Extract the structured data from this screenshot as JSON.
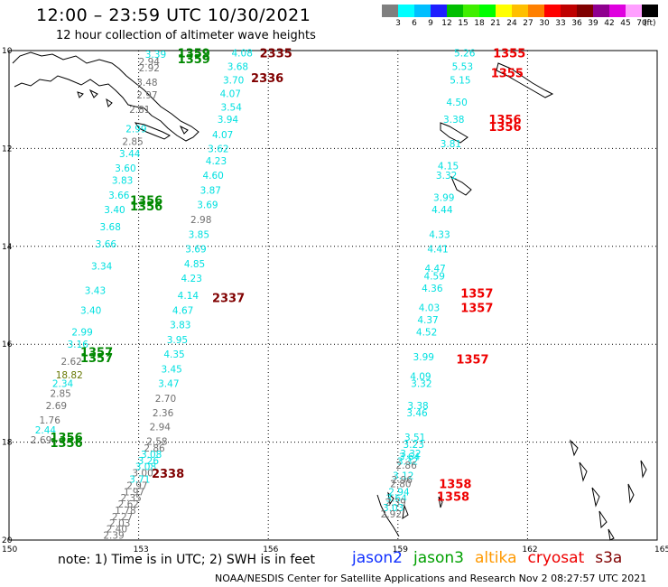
{
  "header": {
    "title": "12:00 – 23:59 UTC 10/30/2021",
    "subtitle": "12 hour collection of altimeter wave heights"
  },
  "colorbar": {
    "colors": [
      "#7f7f7f",
      "#00ffff",
      "#00bfff",
      "#1f1fff",
      "#00bf00",
      "#3fef00",
      "#00ff00",
      "#ffff00",
      "#ffbf00",
      "#ff8000",
      "#ff0000",
      "#bf0000",
      "#800000",
      "#8f008f",
      "#df00df",
      "#ff9fff",
      "#000000"
    ],
    "labels": [
      "3",
      "6",
      "9",
      "12",
      "15",
      "18",
      "21",
      "24",
      "27",
      "30",
      "33",
      "36",
      "39",
      "42",
      "45",
      "70"
    ],
    "unit": "(ft)"
  },
  "map": {
    "lat_labels": [
      "10",
      "12",
      "14",
      "16",
      "18",
      "20"
    ],
    "lon_labels": [
      "150",
      "153",
      "156",
      "159",
      "162",
      "165"
    ],
    "chart_data": {
      "type": "scatter",
      "lon_range": [
        150,
        165
      ],
      "lat_range": [
        -20,
        -10
      ],
      "series_colors": {
        "cyan": "#00e0e0",
        "gray": "#707070",
        "green": "#008800",
        "olive": "#667700",
        "darkred": "#800000",
        "red": "#ee0000"
      },
      "wave_labels": [
        [
          "3.39",
          153.15,
          -10.07,
          "cyan"
        ],
        [
          "2.94",
          153.0,
          -10.22,
          "gray"
        ],
        [
          "2.92",
          153.0,
          -10.35,
          "gray"
        ],
        [
          "3.48",
          152.95,
          -10.65,
          "gray"
        ],
        [
          "2.97",
          152.95,
          -10.9,
          "gray"
        ],
        [
          "2.81",
          152.78,
          -11.2,
          "gray"
        ],
        [
          "2.99",
          152.7,
          -11.6,
          "cyan"
        ],
        [
          "2.85",
          152.62,
          -11.85,
          "gray"
        ],
        [
          "3.44",
          152.55,
          -12.1,
          "cyan"
        ],
        [
          "3.60",
          152.45,
          -12.4,
          "cyan"
        ],
        [
          "3.83",
          152.38,
          -12.65,
          "cyan"
        ],
        [
          "3.66",
          152.3,
          -12.95,
          "cyan"
        ],
        [
          "3.40",
          152.2,
          -13.25,
          "cyan"
        ],
        [
          "3.68",
          152.1,
          -13.6,
          "cyan"
        ],
        [
          "3.66",
          152.0,
          -13.95,
          "cyan"
        ],
        [
          "3.34",
          151.9,
          -14.4,
          "cyan"
        ],
        [
          "3.43",
          151.75,
          -14.9,
          "cyan"
        ],
        [
          "3.40",
          151.65,
          -15.3,
          "cyan"
        ],
        [
          "2.99",
          151.45,
          -15.75,
          "cyan"
        ],
        [
          "3.16",
          151.35,
          -16.0,
          "cyan"
        ],
        [
          "2.62",
          151.2,
          -16.35,
          "gray"
        ],
        [
          "18.82",
          151.08,
          -16.62,
          "olive"
        ],
        [
          "2.34",
          151.0,
          -16.8,
          "cyan"
        ],
        [
          "2.85",
          150.95,
          -17.0,
          "gray"
        ],
        [
          "2.69",
          150.85,
          -17.25,
          "gray"
        ],
        [
          "1.76",
          150.7,
          -17.55,
          "gray"
        ],
        [
          "2.44",
          150.6,
          -17.75,
          "cyan"
        ],
        [
          "2.69",
          150.5,
          -17.95,
          "gray"
        ],
        [
          "4.08",
          155.15,
          -10.05,
          "cyan"
        ],
        [
          "3.68",
          155.05,
          -10.32,
          "cyan"
        ],
        [
          "3.70",
          154.95,
          -10.6,
          "cyan"
        ],
        [
          "4.07",
          154.88,
          -10.88,
          "cyan"
        ],
        [
          "3.54",
          154.9,
          -11.15,
          "cyan"
        ],
        [
          "3.94",
          154.82,
          -11.4,
          "cyan"
        ],
        [
          "4.07",
          154.7,
          -11.72,
          "cyan"
        ],
        [
          "3.62",
          154.6,
          -12.0,
          "cyan"
        ],
        [
          "4.23",
          154.55,
          -12.25,
          "cyan"
        ],
        [
          "4.60",
          154.48,
          -12.55,
          "cyan"
        ],
        [
          "3.87",
          154.42,
          -12.85,
          "cyan"
        ],
        [
          "3.69",
          154.35,
          -13.15,
          "cyan"
        ],
        [
          "2.98",
          154.2,
          -13.45,
          "gray"
        ],
        [
          "3.85",
          154.15,
          -13.75,
          "cyan"
        ],
        [
          "3.69",
          154.08,
          -14.05,
          "cyan"
        ],
        [
          "4.85",
          154.05,
          -14.35,
          "cyan"
        ],
        [
          "4.23",
          153.98,
          -14.65,
          "cyan"
        ],
        [
          "4.14",
          153.9,
          -15.0,
          "cyan"
        ],
        [
          "4.67",
          153.78,
          -15.3,
          "cyan"
        ],
        [
          "3.83",
          153.72,
          -15.6,
          "cyan"
        ],
        [
          "3.95",
          153.65,
          -15.9,
          "cyan"
        ],
        [
          "4.35",
          153.58,
          -16.2,
          "cyan"
        ],
        [
          "3.45",
          153.52,
          -16.5,
          "cyan"
        ],
        [
          "3.47",
          153.45,
          -16.8,
          "cyan"
        ],
        [
          "2.70",
          153.38,
          -17.1,
          "gray"
        ],
        [
          "2.36",
          153.32,
          -17.4,
          "gray"
        ],
        [
          "2.94",
          153.25,
          -17.68,
          "gray"
        ],
        [
          "2.58",
          153.18,
          -17.98,
          "gray"
        ],
        [
          "2.86",
          153.12,
          -18.28,
          "gray"
        ],
        [
          "3.08",
          153.05,
          -18.58,
          "cyan"
        ],
        [
          "3.26",
          152.98,
          -18.88,
          "cyan"
        ],
        [
          "3.08",
          152.92,
          -19.18,
          "cyan"
        ],
        [
          "3.00",
          152.85,
          -19.48,
          "gray"
        ],
        [
          "3.71",
          152.78,
          -19.78,
          "cyan"
        ],
        [
          "2.97",
          152.72,
          -20.08,
          "gray"
        ],
        [
          "1.97",
          152.65,
          -20.38,
          "gray"
        ],
        [
          "2.35",
          152.58,
          -20.68,
          "gray"
        ],
        [
          "2.62",
          152.52,
          -20.98,
          "gray"
        ],
        [
          "1.78",
          152.45,
          -21.28,
          "gray"
        ],
        [
          "2.27",
          152.38,
          -21.58,
          "gray"
        ],
        [
          "2.03",
          152.32,
          -21.88,
          "gray"
        ],
        [
          "2.40",
          152.25,
          -22.18,
          "gray"
        ],
        [
          "2.39",
          152.18,
          -22.48,
          "gray"
        ],
        [
          "5.26",
          160.3,
          -10.05,
          "cyan"
        ],
        [
          "5.53",
          160.25,
          -10.32,
          "cyan"
        ],
        [
          "5.15",
          160.2,
          -10.6,
          "cyan"
        ],
        [
          "4.50",
          160.12,
          -11.05,
          "cyan"
        ],
        [
          "3.38",
          160.05,
          -11.4,
          "cyan"
        ],
        [
          "3.81",
          159.98,
          -11.9,
          "cyan"
        ],
        [
          "4.15",
          159.92,
          -12.35,
          "cyan"
        ],
        [
          "3.32",
          159.88,
          -12.55,
          "cyan"
        ],
        [
          "3.99",
          159.82,
          -13.0,
          "cyan"
        ],
        [
          "4.44",
          159.78,
          -13.25,
          "cyan"
        ],
        [
          "4.33",
          159.72,
          -13.75,
          "cyan"
        ],
        [
          "4.41",
          159.68,
          -14.05,
          "cyan"
        ],
        [
          "4.47",
          159.62,
          -14.45,
          "cyan"
        ],
        [
          "4.59",
          159.6,
          -14.6,
          "cyan"
        ],
        [
          "4.36",
          159.55,
          -14.85,
          "cyan"
        ],
        [
          "4.03",
          159.48,
          -15.25,
          "cyan"
        ],
        [
          "4.37",
          159.45,
          -15.5,
          "cyan"
        ],
        [
          "4.52",
          159.42,
          -15.75,
          "cyan"
        ],
        [
          "3.99",
          159.35,
          -16.25,
          "cyan"
        ],
        [
          "4.09",
          159.28,
          -16.65,
          "cyan"
        ],
        [
          "3.32",
          159.3,
          -16.8,
          "cyan"
        ],
        [
          "3.38",
          159.22,
          -17.25,
          "cyan"
        ],
        [
          "3.46",
          159.2,
          -17.4,
          "cyan"
        ],
        [
          "3.51",
          159.15,
          -17.9,
          "cyan"
        ],
        [
          "3.23",
          159.12,
          -18.1,
          "cyan"
        ],
        [
          "3.32",
          159.05,
          -18.55,
          "cyan"
        ],
        [
          "3.64",
          159.02,
          -18.7,
          "cyan"
        ],
        [
          "3.32",
          158.98,
          -18.9,
          "cyan"
        ],
        [
          "2.86",
          158.95,
          -19.1,
          "gray"
        ],
        [
          "3.12",
          158.88,
          -19.6,
          "cyan"
        ],
        [
          "2.96",
          158.85,
          -19.8,
          "gray"
        ],
        [
          "2.80",
          158.82,
          -20.0,
          "gray"
        ],
        [
          "2.94",
          158.78,
          -20.4,
          "cyan"
        ],
        [
          "3.64",
          158.72,
          -20.7,
          "cyan"
        ],
        [
          "2.39",
          158.7,
          -20.9,
          "gray"
        ],
        [
          "3.03",
          158.65,
          -21.15,
          "cyan"
        ],
        [
          "2.92",
          158.6,
          -21.45,
          "gray"
        ]
      ],
      "pass_labels": [
        [
          "1359",
          153.9,
          -10.05,
          "green"
        ],
        [
          "1359",
          153.9,
          -10.17,
          "green"
        ],
        [
          "2335",
          155.8,
          -10.05,
          "darkred"
        ],
        [
          "2336",
          155.6,
          -10.55,
          "darkred"
        ],
        [
          "1356",
          152.8,
          -13.05,
          "green"
        ],
        [
          "1356",
          152.8,
          -13.17,
          "green"
        ],
        [
          "2337",
          154.7,
          -15.05,
          "darkred"
        ],
        [
          "1357",
          151.65,
          -16.15,
          "green"
        ],
        [
          "1357",
          151.65,
          -16.27,
          "green"
        ],
        [
          "2338",
          153.3,
          -19.5,
          "darkred"
        ],
        [
          "1356",
          150.95,
          -17.9,
          "green"
        ],
        [
          "1356",
          150.95,
          -18.02,
          "green"
        ],
        [
          "1355",
          161.2,
          -10.05,
          "red"
        ],
        [
          "1355",
          161.15,
          -10.45,
          "red"
        ],
        [
          "1356",
          161.1,
          -11.4,
          "red"
        ],
        [
          "1356",
          161.1,
          -11.55,
          "red"
        ],
        [
          "1357",
          160.45,
          -14.95,
          "red"
        ],
        [
          "1357",
          160.45,
          -15.25,
          "red"
        ],
        [
          "1357",
          160.35,
          -16.3,
          "red"
        ],
        [
          "1358",
          159.95,
          -20.0,
          "red"
        ],
        [
          "1358",
          159.9,
          -20.6,
          "red"
        ]
      ]
    }
  },
  "note": "note: 1) Time is in UTC; 2) SWH is in feet",
  "legend": [
    {
      "label": "jason2",
      "color": "#1030ff"
    },
    {
      "label": "jason3",
      "color": "#00a000"
    },
    {
      "label": "altika",
      "color": "#ff9900"
    },
    {
      "label": "cryosat",
      "color": "#ee0000"
    },
    {
      "label": "s3a",
      "color": "#800000"
    }
  ],
  "footer": "NOAA/NESDIS Center for Satellite Applications and Research   Nov  2 08:27:57 UTC 2021"
}
